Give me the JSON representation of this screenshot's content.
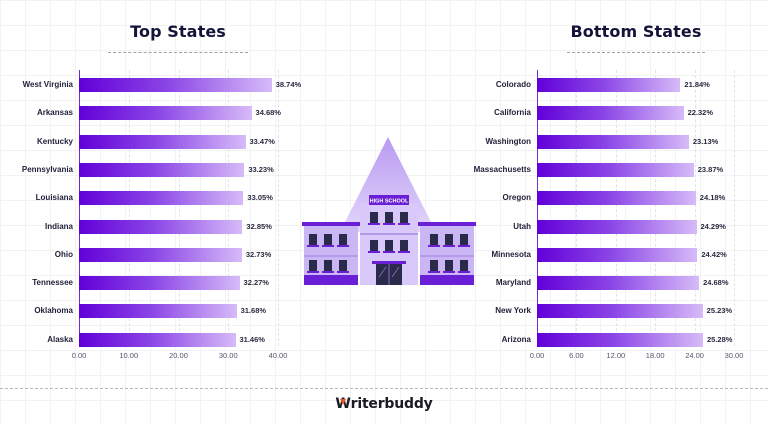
{
  "chart_data": [
    {
      "type": "bar",
      "orientation": "horizontal",
      "title": "Top States",
      "categories": [
        "West Virginia",
        "Arkansas",
        "Kentucky",
        "Pennsylvania",
        "Louisiana",
        "Indiana",
        "Ohio",
        "Tennessee",
        "Oklahoma",
        "Alaska"
      ],
      "values": [
        38.74,
        34.68,
        33.47,
        33.23,
        33.05,
        32.85,
        32.73,
        32.27,
        31.68,
        31.46
      ],
      "value_labels": [
        "38.74%",
        "34.68%",
        "33.47%",
        "33.23%",
        "33.05%",
        "32.85%",
        "32.73%",
        "32.27%",
        "31.68%",
        "31.46%"
      ],
      "xticks": [
        "0.00",
        "10.00",
        "20.00",
        "30.00",
        "40.00"
      ],
      "xlim": [
        0,
        40
      ],
      "xlabel": "",
      "ylabel": "",
      "grid": true,
      "legend": "none"
    },
    {
      "type": "bar",
      "orientation": "horizontal",
      "title": "Bottom States",
      "categories": [
        "Colorado",
        "California",
        "Washington",
        "Massachusetts",
        "Oregon",
        "Utah",
        "Minnesota",
        "Maryland",
        "New York",
        "Arizona"
      ],
      "values": [
        21.84,
        22.32,
        23.13,
        23.87,
        24.18,
        24.29,
        24.42,
        24.68,
        25.23,
        25.28
      ],
      "value_labels": [
        "21.84%",
        "22.32%",
        "23.13%",
        "23.87%",
        "24.18%",
        "24.29%",
        "24.42%",
        "24.68%",
        "25.23%",
        "25.28%"
      ],
      "xticks": [
        "0.00",
        "6.00",
        "12.00",
        "18.00",
        "24.00",
        "30.00"
      ],
      "xlim": [
        0,
        30
      ],
      "xlabel": "",
      "ylabel": "",
      "grid": true,
      "legend": "none"
    }
  ],
  "illustration": {
    "icon": "school-building-icon",
    "sign_text": "HIGH SCHOOL"
  },
  "colors": {
    "bar_start": "#6200d8",
    "bar_end": "#d6bbf8",
    "title": "#14143a",
    "brand_accent": "#e8562a"
  },
  "footer": {
    "brand_initial": "W",
    "brand_rest": "riterbuddy"
  }
}
